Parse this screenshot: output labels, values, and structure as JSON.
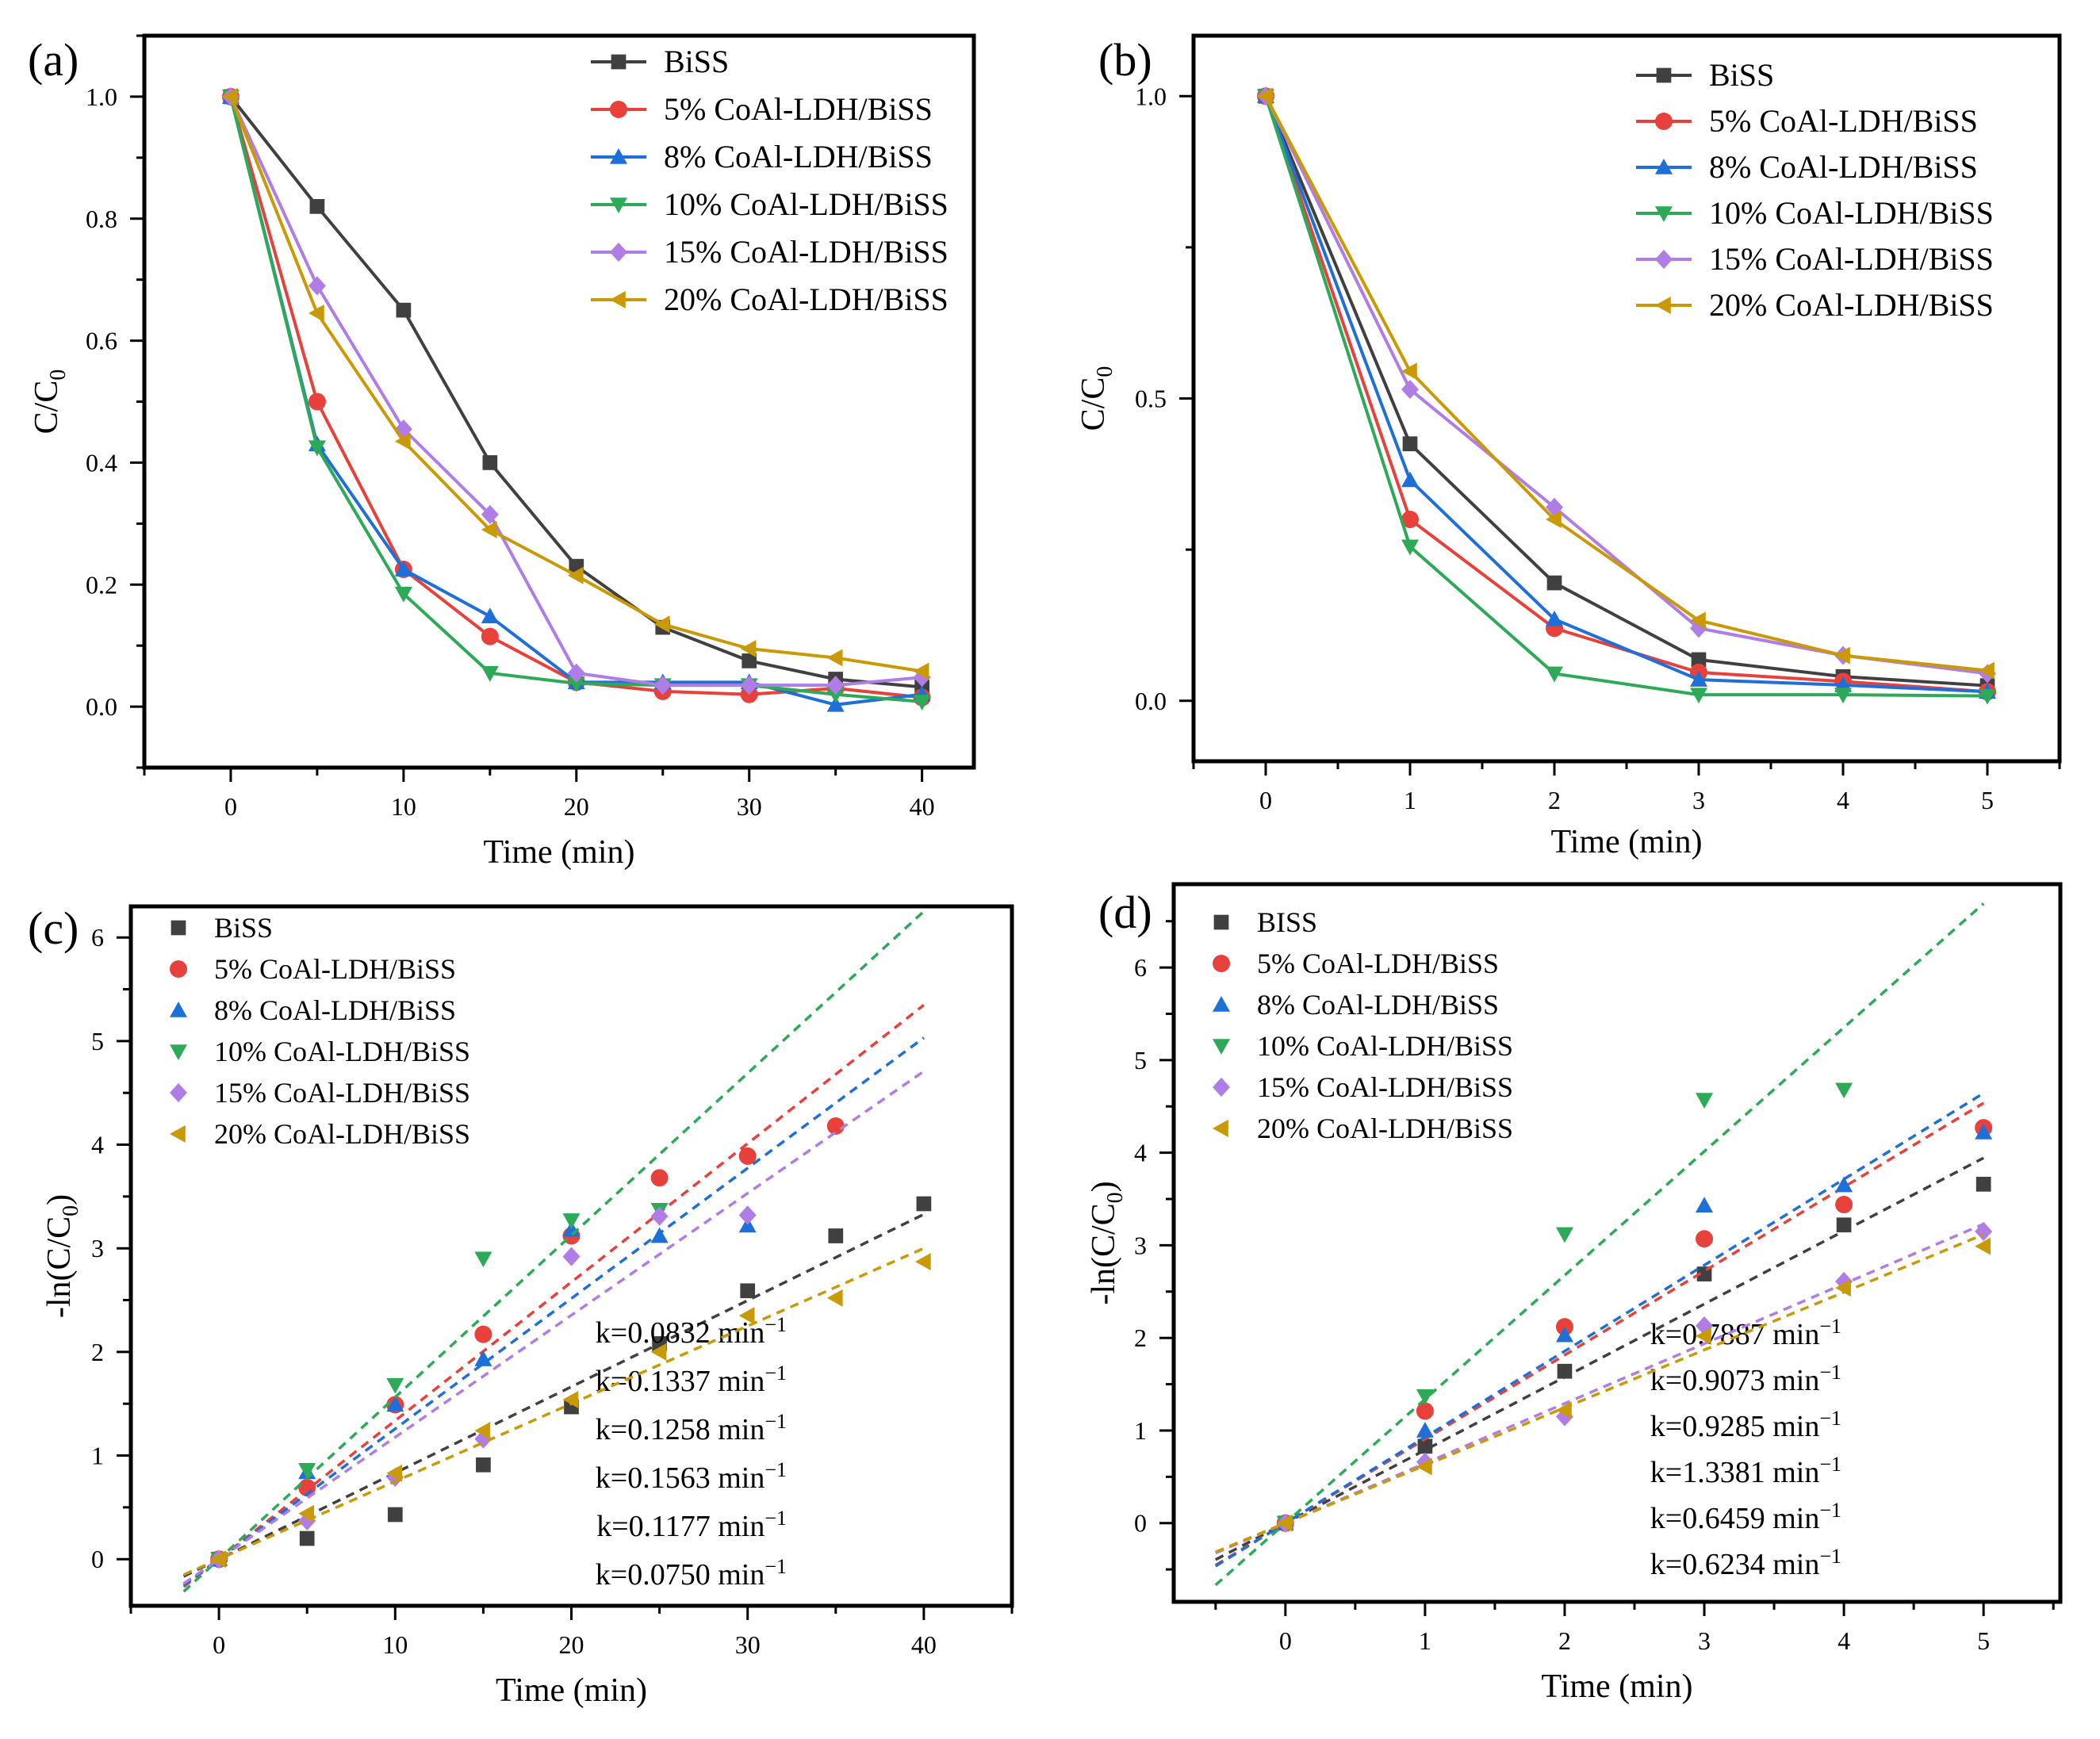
{
  "figure": {
    "series_colors": [
      "#404040",
      "#e8413c",
      "#1f6fd8",
      "#2daa57",
      "#b07ce6",
      "#c99a06"
    ]
  },
  "chart_data": [
    {
      "panel": "a",
      "panel_label": "(a)",
      "type": "line",
      "xlabel": "Time (min)",
      "ylabel_main": "C/C",
      "ylabel_sub": "0",
      "xlim": [
        -5,
        43
      ],
      "ylim": [
        -0.1,
        1.1
      ],
      "xticks": [
        0,
        10,
        20,
        30,
        40
      ],
      "yticks": [
        0.0,
        0.2,
        0.4,
        0.6,
        0.8,
        1.0
      ],
      "ytick_labels": [
        "0.0",
        "0.2",
        "0.4",
        "0.6",
        "0.8",
        "1.0"
      ],
      "legend_position": "top-right",
      "x": [
        0,
        5,
        10,
        15,
        20,
        25,
        30,
        35,
        40
      ],
      "series": [
        {
          "name": "BiSS",
          "marker": "square",
          "values": [
            1.0,
            0.82,
            0.65,
            0.4,
            0.23,
            0.13,
            0.075,
            0.045,
            0.032
          ]
        },
        {
          "name": "5% CoAl-LDH/BiSS",
          "marker": "circle",
          "values": [
            1.0,
            0.5,
            0.225,
            0.115,
            0.04,
            0.025,
            0.02,
            0.03,
            0.015
          ]
        },
        {
          "name": "8% CoAl-LDH/BiSS",
          "marker": "triangle-up",
          "values": [
            1.0,
            0.43,
            0.225,
            0.148,
            0.04,
            0.04,
            0.04,
            0.003,
            0.02
          ]
        },
        {
          "name": "10% CoAl-LDH/BiSS",
          "marker": "triangle-down",
          "values": [
            1.0,
            0.425,
            0.185,
            0.055,
            0.038,
            0.035,
            0.035,
            0.02,
            0.008
          ]
        },
        {
          "name": "15% CoAl-LDH/BiSS",
          "marker": "diamond",
          "values": [
            1.0,
            0.69,
            0.455,
            0.315,
            0.055,
            0.035,
            0.035,
            0.035,
            0.048
          ]
        },
        {
          "name": "20% CoAl-LDH/BiSS",
          "marker": "triangle-left",
          "values": [
            1.0,
            0.645,
            0.435,
            0.29,
            0.215,
            0.135,
            0.095,
            0.08,
            0.058
          ]
        }
      ]
    },
    {
      "panel": "b",
      "panel_label": "(b)",
      "type": "line",
      "xlabel": "Time (min)",
      "ylabel_main": "C/C",
      "ylabel_sub": "0",
      "xlim": [
        -0.5,
        5.5
      ],
      "ylim": [
        -0.1,
        1.1
      ],
      "xticks": [
        0,
        1,
        2,
        3,
        4,
        5
      ],
      "yticks": [
        0.0,
        0.5,
        1.0
      ],
      "ytick_labels": [
        "0.0",
        "0.5",
        "1.0"
      ],
      "legend_position": "top-right",
      "x": [
        0,
        1,
        2,
        3,
        4,
        5
      ],
      "series": [
        {
          "name": "BiSS",
          "marker": "square",
          "values": [
            1.0,
            0.425,
            0.195,
            0.068,
            0.04,
            0.025
          ]
        },
        {
          "name": "5% CoAl-LDH/BiSS",
          "marker": "circle",
          "values": [
            1.0,
            0.3,
            0.12,
            0.047,
            0.032,
            0.015
          ]
        },
        {
          "name": "8% CoAl-LDH/BiSS",
          "marker": "triangle-up",
          "values": [
            1.0,
            0.365,
            0.135,
            0.035,
            0.026,
            0.015
          ]
        },
        {
          "name": "10% CoAl-LDH/BiSS",
          "marker": "triangle-down",
          "values": [
            1.0,
            0.255,
            0.045,
            0.01,
            0.01,
            0.008
          ]
        },
        {
          "name": "15% CoAl-LDH/BiSS",
          "marker": "diamond",
          "values": [
            1.0,
            0.515,
            0.32,
            0.12,
            0.075,
            0.045
          ]
        },
        {
          "name": "20% CoAl-LDH/BiSS",
          "marker": "triangle-left",
          "values": [
            1.0,
            0.545,
            0.3,
            0.133,
            0.075,
            0.05
          ]
        }
      ]
    },
    {
      "panel": "c",
      "panel_label": "(c)",
      "type": "scatter",
      "xlabel": "Time (min)",
      "ylabel_main": "-ln(C/C",
      "ylabel_sub": "0",
      "ylabel_end": ")",
      "xlim": [
        -5,
        45
      ],
      "ylim": [
        -0.45,
        6.3
      ],
      "xticks": [
        0,
        10,
        20,
        30,
        40
      ],
      "yticks": [
        0,
        1,
        2,
        3,
        4,
        5,
        6
      ],
      "ytick_labels": [
        "0",
        "1",
        "2",
        "3",
        "4",
        "5",
        "6"
      ],
      "legend_position": "top-left",
      "fit_x_range": [
        -2,
        40
      ],
      "x": [
        0,
        5,
        10,
        15,
        20,
        25,
        30,
        35,
        40
      ],
      "series": [
        {
          "name": "BiSS",
          "marker": "square",
          "k": 0.0832,
          "k_label": "k=0.0832 min",
          "values": [
            0.0,
            0.2,
            0.43,
            0.91,
            1.47,
            2.08,
            2.59,
            3.12,
            3.43
          ]
        },
        {
          "name": "5% CoAl-LDH/BiSS",
          "marker": "circle",
          "k": 0.1337,
          "k_label": "k=0.1337 min",
          "values": [
            0.0,
            0.69,
            1.49,
            2.17,
            3.12,
            3.68,
            3.89,
            4.18,
            null
          ]
        },
        {
          "name": "8% CoAl-LDH/BiSS",
          "marker": "triangle-up",
          "k": 0.1258,
          "k_label": "k=0.1258 min",
          "values": [
            0.0,
            0.84,
            1.49,
            1.93,
            3.18,
            3.12,
            3.22,
            null,
            null
          ]
        },
        {
          "name": "10% CoAl-LDH/BiSS",
          "marker": "triangle-down",
          "k": 0.1563,
          "k_label": "k=0.1563 min",
          "values": [
            0.0,
            0.86,
            1.68,
            2.9,
            3.27,
            3.37,
            null,
            null,
            null
          ]
        },
        {
          "name": "15% CoAl-LDH/BiSS",
          "marker": "diamond",
          "k": 0.1177,
          "k_label": "k=0.1177 min",
          "values": [
            0.0,
            0.37,
            0.79,
            1.16,
            2.92,
            3.31,
            3.32,
            null,
            null
          ]
        },
        {
          "name": "20% CoAl-LDH/BiSS",
          "marker": "triangle-left",
          "k": 0.075,
          "k_label": "k=0.0750 min",
          "values": [
            0.0,
            0.44,
            0.83,
            1.24,
            1.54,
            2.0,
            2.35,
            2.52,
            2.87
          ]
        }
      ],
      "k_unit_sup": "−1"
    },
    {
      "panel": "d",
      "panel_label": "(d)",
      "type": "scatter",
      "xlabel": "Time (min)",
      "ylabel_main": "-ln(C/C",
      "ylabel_sub": "0",
      "ylabel_end": ")",
      "xlim": [
        -0.8,
        5.55
      ],
      "ylim": [
        -0.85,
        6.9
      ],
      "xticks": [
        0,
        1,
        2,
        3,
        4,
        5
      ],
      "yticks": [
        0,
        1,
        2,
        3,
        4,
        5,
        6
      ],
      "ytick_labels": [
        "0",
        "1",
        "2",
        "3",
        "4",
        "5",
        "6"
      ],
      "legend_position": "top-left",
      "fit_x_range": [
        -0.5,
        5
      ],
      "x": [
        0,
        1,
        2,
        3,
        4,
        5
      ],
      "series": [
        {
          "name": "BISS",
          "marker": "square",
          "k": 0.7887,
          "k_label": "k=0.7887 min",
          "values": [
            0.0,
            0.83,
            1.64,
            2.69,
            3.22,
            3.66
          ]
        },
        {
          "name": "5% CoAl-LDH/BiSS",
          "marker": "circle",
          "k": 0.9073,
          "k_label": "k=0.9073 min",
          "values": [
            0.0,
            1.21,
            2.12,
            3.07,
            3.44,
            4.27
          ]
        },
        {
          "name": "8% CoAl-LDH/BiSS",
          "marker": "triangle-up",
          "k": 0.9285,
          "k_label": "k=0.9285 min",
          "values": [
            0.0,
            1.0,
            2.03,
            3.43,
            3.65,
            4.22
          ]
        },
        {
          "name": "10% CoAl-LDH/BiSS",
          "marker": "triangle-down",
          "k": 1.3381,
          "k_label": "k=1.3381 min",
          "values": [
            0.0,
            1.37,
            3.12,
            4.57,
            4.68,
            null
          ]
        },
        {
          "name": "15% CoAl-LDH/BiSS",
          "marker": "diamond",
          "k": 0.6459,
          "k_label": "k=0.6459 min",
          "values": [
            0.0,
            0.66,
            1.15,
            2.13,
            2.61,
            3.15
          ]
        },
        {
          "name": "20% CoAl-LDH/BiSS",
          "marker": "triangle-left",
          "k": 0.6234,
          "k_label": "k=0.6234 min",
          "values": [
            0.0,
            0.61,
            1.22,
            2.02,
            2.54,
            2.99
          ]
        }
      ],
      "k_unit_sup": "−1"
    }
  ]
}
